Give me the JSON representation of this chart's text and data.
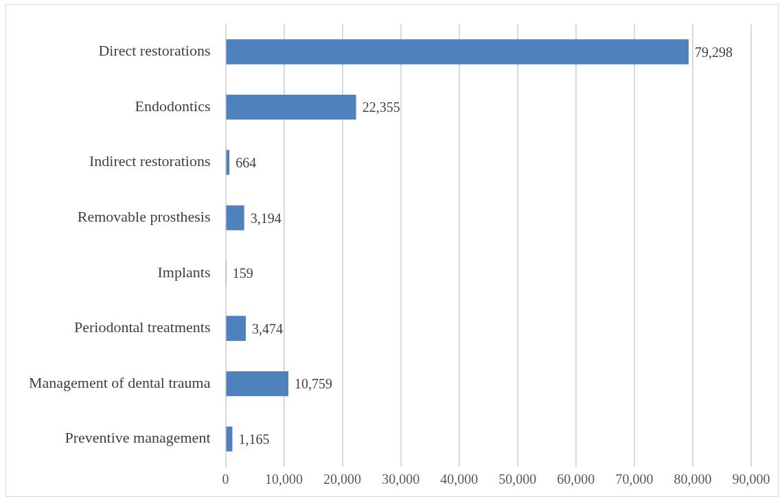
{
  "chart_data": {
    "type": "bar",
    "orientation": "horizontal",
    "categories": [
      "Direct restorations",
      "Endodontics",
      "Indirect restorations",
      "Removable prosthesis",
      "Implants",
      "Periodontal treatments",
      "Management of dental trauma",
      "Preventive management"
    ],
    "values": [
      79298,
      22355,
      664,
      3194,
      159,
      3474,
      10759,
      1165
    ],
    "value_labels": [
      "79,298",
      "22,355",
      "664",
      "3,194",
      "159",
      "3,474",
      "10,759",
      "1,165"
    ],
    "color": "#4f81bd",
    "xlim": [
      0,
      90000
    ],
    "xticks": [
      0,
      {
        "value": 10000,
        "label": "10,000"
      },
      {
        "value": 20000,
        "label": "20,000"
      },
      {
        "value": 30000,
        "label": "30,000"
      },
      {
        "value": 40000,
        "label": "40,000"
      },
      {
        "value": 50000,
        "label": "50,000"
      },
      {
        "value": 60000,
        "label": "60,000"
      },
      {
        "value": 70000,
        "label": "70,000"
      },
      {
        "value": 80000,
        "label": "80,000"
      },
      {
        "value": 90000,
        "label": "90,000"
      }
    ],
    "grid": "x",
    "legend": false
  }
}
